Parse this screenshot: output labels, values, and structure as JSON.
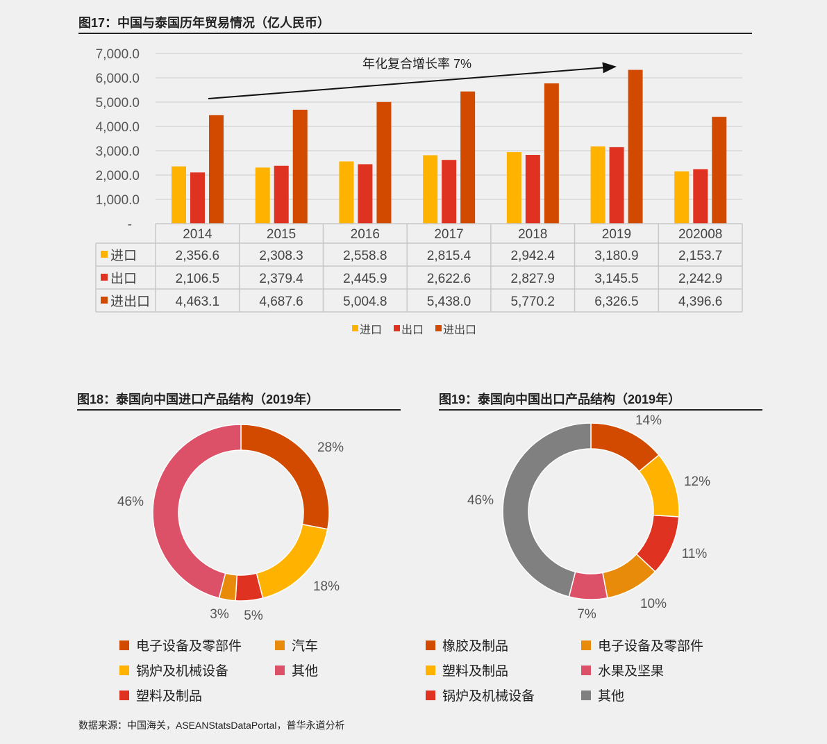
{
  "colors": {
    "import": "#ffb300",
    "export": "#e03220",
    "total": "#d14a00",
    "car": "#e88a0a",
    "pink": "#dc5068",
    "gray": "#808080"
  },
  "chart_data": [
    {
      "type": "bar",
      "title": "图17：中国与泰国历年贸易情况（亿人民币）",
      "categories": [
        "2014",
        "2015",
        "2016",
        "2017",
        "2018",
        "2019",
        "202008"
      ],
      "series": [
        {
          "name": "进口",
          "values": [
            2356.6,
            2308.3,
            2558.8,
            2815.4,
            2942.4,
            3180.9,
            2153.7
          ],
          "labels": [
            "2,356.6",
            "2,308.3",
            "2,558.8",
            "2,815.4",
            "2,942.4",
            "3,180.9",
            "2,153.7"
          ]
        },
        {
          "name": "出口",
          "values": [
            2106.5,
            2379.4,
            2445.9,
            2622.6,
            2827.9,
            3145.5,
            2242.9
          ],
          "labels": [
            "2,106.5",
            "2,379.4",
            "2,445.9",
            "2,622.6",
            "2,827.9",
            "3,145.5",
            "2,242.9"
          ]
        },
        {
          "name": "进出口",
          "values": [
            4463.1,
            4687.6,
            5004.8,
            5438.0,
            5770.2,
            6326.5,
            4396.6
          ],
          "labels": [
            "4,463.1",
            "4,687.6",
            "5,004.8",
            "5,438.0",
            "5,770.2",
            "6,326.5",
            "4,396.6"
          ]
        }
      ],
      "ylim": [
        0,
        7000
      ],
      "yticks": [
        "-",
        "1,000.0",
        "2,000.0",
        "3,000.0",
        "4,000.0",
        "5,000.0",
        "6,000.0",
        "7,000.0"
      ],
      "annotation": "年化复合增长率  7%",
      "legend": "bottom",
      "grid": true
    },
    {
      "type": "pie",
      "title": "图18：泰国向中国进口产品结构（2019年）",
      "labels": [
        "电子设备及零部件",
        "锅炉及机械设备",
        "塑料及制品",
        "汽车",
        "其他"
      ],
      "values": [
        28,
        18,
        5,
        3,
        46
      ],
      "value_labels": [
        "28%",
        "18%",
        "5%",
        "3%",
        "46%"
      ],
      "colors": [
        "#d14a00",
        "#ffb300",
        "#e03220",
        "#e88a0a",
        "#dc5068"
      ]
    },
    {
      "type": "pie",
      "title": "图19：泰国向中国出口产品结构（2019年）",
      "labels": [
        "橡胶及制品",
        "塑料及制品",
        "锅炉及机械设备",
        "电子设备及零部件",
        "水果及坚果",
        "其他"
      ],
      "values": [
        14,
        12,
        11,
        10,
        7,
        46
      ],
      "value_labels": [
        "14%",
        "12%",
        "11%",
        "10%",
        "7%",
        "46%"
      ],
      "colors": [
        "#d14a00",
        "#ffb300",
        "#e03220",
        "#e88a0a",
        "#dc5068",
        "#808080"
      ]
    }
  ],
  "source": "数据来源：中国海关，ASEANStatsDataPortal，普华永道分析"
}
